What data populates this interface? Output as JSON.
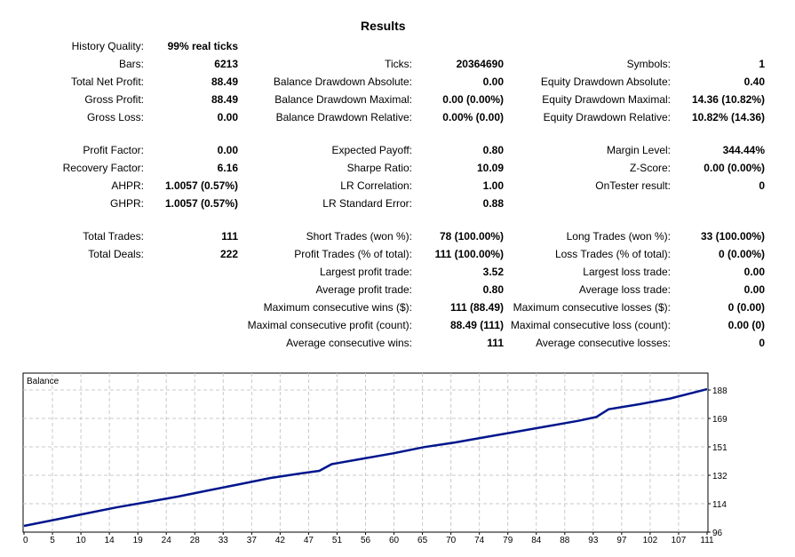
{
  "title": "Results",
  "rows": [
    {
      "cells": [
        {
          "label": "History Quality:",
          "value": "99% real ticks"
        },
        null,
        null
      ]
    },
    {
      "cells": [
        {
          "label": "Bars:",
          "value": "6213"
        },
        {
          "label": "Ticks:",
          "value": "20364690"
        },
        {
          "label": "Symbols:",
          "value": "1"
        }
      ]
    },
    {
      "cells": [
        {
          "label": "Total Net Profit:",
          "value": "88.49"
        },
        {
          "label": "Balance Drawdown Absolute:",
          "value": "0.00"
        },
        {
          "label": "Equity Drawdown Absolute:",
          "value": "0.40"
        }
      ]
    },
    {
      "cells": [
        {
          "label": "Gross Profit:",
          "value": "88.49"
        },
        {
          "label": "Balance Drawdown Maximal:",
          "value": "0.00 (0.00%)"
        },
        {
          "label": "Equity Drawdown Maximal:",
          "value": "14.36 (10.82%)"
        }
      ]
    },
    {
      "cells": [
        {
          "label": "Gross Loss:",
          "value": "0.00"
        },
        {
          "label": "Balance Drawdown Relative:",
          "value": "0.00% (0.00)"
        },
        {
          "label": "Equity Drawdown Relative:",
          "value": "10.82% (14.36)"
        }
      ]
    },
    {
      "cells": [
        {
          "label": "Profit Factor:",
          "value": "0.00"
        },
        {
          "label": "Expected Payoff:",
          "value": "0.80"
        },
        {
          "label": "Margin Level:",
          "value": "344.44%"
        }
      ]
    },
    {
      "cells": [
        {
          "label": "Recovery Factor:",
          "value": "6.16"
        },
        {
          "label": "Sharpe Ratio:",
          "value": "10.09"
        },
        {
          "label": "Z-Score:",
          "value": "0.00 (0.00%)"
        }
      ]
    },
    {
      "cells": [
        {
          "label": "AHPR:",
          "value": "1.0057 (0.57%)"
        },
        {
          "label": "LR Correlation:",
          "value": "1.00"
        },
        {
          "label": "OnTester result:",
          "value": "0"
        }
      ]
    },
    {
      "cells": [
        {
          "label": "GHPR:",
          "value": "1.0057 (0.57%)"
        },
        {
          "label": "LR Standard Error:",
          "value": "0.88"
        },
        null
      ]
    },
    {
      "cells": [
        {
          "label": "Total Trades:",
          "value": "111"
        },
        {
          "label": "Short Trades (won %):",
          "value": "78 (100.00%)"
        },
        {
          "label": "Long Trades (won %):",
          "value": "33 (100.00%)"
        }
      ]
    },
    {
      "cells": [
        {
          "label": "Total Deals:",
          "value": "222"
        },
        {
          "label": "Profit Trades (% of total):",
          "value": "111 (100.00%)"
        },
        {
          "label": "Loss Trades (% of total):",
          "value": "0 (0.00%)"
        }
      ]
    },
    {
      "cells": [
        null,
        {
          "label": "Largest profit trade:",
          "value": "3.52"
        },
        {
          "label": "Largest loss trade:",
          "value": "0.00"
        }
      ]
    },
    {
      "cells": [
        null,
        {
          "label": "Average profit trade:",
          "value": "0.80"
        },
        {
          "label": "Average loss trade:",
          "value": "0.00"
        }
      ]
    },
    {
      "cells": [
        null,
        {
          "label": "Maximum consecutive wins ($):",
          "value": "111 (88.49)"
        },
        {
          "label": "Maximum consecutive losses ($):",
          "value": "0 (0.00)"
        }
      ]
    },
    {
      "cells": [
        null,
        {
          "label": "Maximal consecutive profit (count):",
          "value": "88.49 (111)"
        },
        {
          "label": "Maximal consecutive loss (count):",
          "value": "0.00 (0)"
        }
      ]
    },
    {
      "cells": [
        null,
        {
          "label": "Average consecutive wins:",
          "value": "111"
        },
        {
          "label": "Average consecutive losses:",
          "value": "0"
        }
      ]
    }
  ],
  "chart_data": {
    "type": "line",
    "title": "Balance",
    "line_color": "#00168c",
    "grid": true,
    "xlim": [
      0,
      111
    ],
    "ylim": [
      96,
      188
    ],
    "x_ticks": [
      "0",
      "5",
      "10",
      "14",
      "19",
      "24",
      "28",
      "33",
      "37",
      "42",
      "47",
      "51",
      "56",
      "60",
      "65",
      "70",
      "74",
      "79",
      "84",
      "88",
      "93",
      "97",
      "102",
      "107",
      "111"
    ],
    "y_ticks": [
      "96",
      "114",
      "132",
      "151",
      "169",
      "188"
    ],
    "series": [
      {
        "x": [
          0,
          5,
          10,
          15,
          20,
          25,
          30,
          35,
          40,
          45,
          48,
          50,
          55,
          60,
          65,
          70,
          75,
          80,
          85,
          90,
          93,
          95,
          100,
          105,
          111
        ],
        "y": [
          100,
          104,
          108,
          112,
          115.5,
          119,
          123,
          127,
          131,
          134,
          135.7,
          140,
          143.5,
          147,
          151,
          154,
          157.5,
          161,
          164.5,
          168,
          170.5,
          175.5,
          178.8,
          182.5,
          188.49
        ]
      }
    ]
  }
}
